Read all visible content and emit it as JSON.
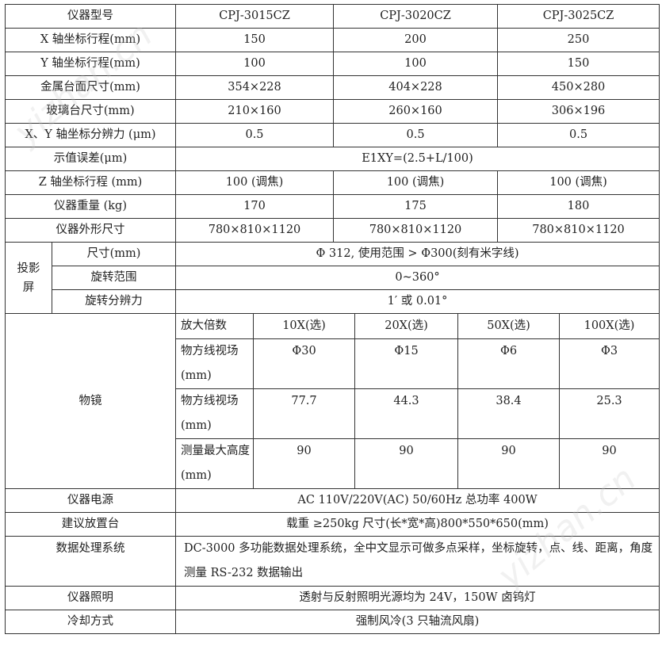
{
  "header": {
    "label": "仪器型号",
    "models": [
      "CPJ-3015CZ",
      "CPJ-3020CZ",
      "CPJ-3025CZ"
    ]
  },
  "rows": [
    {
      "label": "X 轴坐标行程(mm)",
      "values": [
        "150",
        "200",
        "250"
      ]
    },
    {
      "label": "Y 轴坐标行程(mm)",
      "values": [
        "100",
        "100",
        "150"
      ]
    },
    {
      "label": "金属台面尺寸(mm)",
      "values": [
        "354×228",
        "404×228",
        "450×280"
      ]
    },
    {
      "label": "玻璃台尺寸(mm)",
      "values": [
        "210×160",
        "260×160",
        "306×196"
      ]
    },
    {
      "label": "X、Y 轴坐标分辨力 (μm)",
      "values": [
        "0.5",
        "0.5",
        "0.5"
      ]
    }
  ],
  "error": {
    "label": "示值误差(μm)",
    "value": "E1XY=(2.5+L/100)"
  },
  "rows2": [
    {
      "label": "Z 轴坐标行程 (mm)",
      "values": [
        "100 (调焦)",
        "100 (调焦)",
        "100 (调焦)"
      ]
    },
    {
      "label": "仪器重量 (kg)",
      "values": [
        "170",
        "175",
        "180"
      ]
    },
    {
      "label": "仪器外形尺寸",
      "values": [
        "780×810×1120",
        "780×810×1120",
        "780×810×1120"
      ]
    }
  ],
  "screen": {
    "label": "投影屏",
    "items": [
      {
        "label": "尺寸(mm)",
        "value": "Φ 312, 使用范围 > Φ300(刻有米字线)"
      },
      {
        "label": "旋转范围",
        "value": "0~360°"
      },
      {
        "label": "旋转分辨力",
        "value": "1′  或 0.01°"
      }
    ]
  },
  "objective": {
    "label": "物镜",
    "rows": [
      {
        "label": "放大倍数",
        "values": [
          "10X(选)",
          "20X(选)",
          "50X(选)",
          "100X(选)"
        ]
      },
      {
        "label": "物方线视场(mm)",
        "values": [
          "Φ30",
          "Φ15",
          "Φ6",
          "Φ3"
        ]
      },
      {
        "label": "物方线视场(mm)",
        "values": [
          "77.7",
          "44.3",
          "38.4",
          "25.3"
        ]
      },
      {
        "label": "测量最大高度(mm)",
        "values": [
          "90",
          "90",
          "90",
          "90"
        ]
      }
    ]
  },
  "rows3": [
    {
      "label": "仪器电源",
      "value": "AC 110V/220V(AC) 50/60Hz 总功率 400W"
    },
    {
      "label": "建议放置台",
      "value": "载重 ≥250kg 尺寸(长*宽*高)800*550*650(mm)"
    },
    {
      "label": "数据处理系统",
      "value": "DC-3000 多功能数据处理系统，全中文显示可做多点采样，坐标旋转，点、线、距离，角度测量 RS-232 数据输出"
    },
    {
      "label": "仪器照明",
      "value": "透射与反射照明光源均为 24V，150W 卤钨灯"
    },
    {
      "label": "冷却方式",
      "value": "强制风冷(3 只轴流风扇)"
    }
  ],
  "watermark": "yizhan.cn"
}
